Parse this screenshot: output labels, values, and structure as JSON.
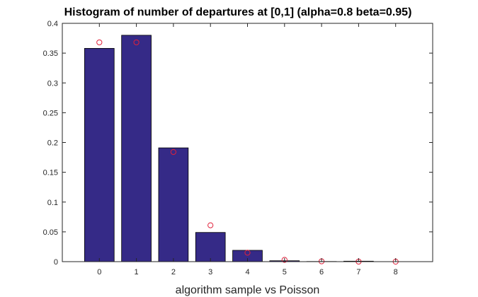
{
  "chart_data": {
    "type": "bar",
    "title": "Histogram of number of departures at [0,1] (alpha=0.8 beta=0.95)",
    "xlabel": "algorithm sample vs Poisson",
    "ylabel": "",
    "categories": [
      "0",
      "1",
      "2",
      "3",
      "4",
      "5",
      "6",
      "7",
      "8"
    ],
    "xlim": [
      -1,
      9
    ],
    "ylim": [
      0,
      0.4
    ],
    "yticks": [
      0,
      0.05,
      0.1,
      0.15,
      0.2,
      0.25,
      0.3,
      0.35,
      0.4
    ],
    "ytick_labels": [
      "0",
      "0.05",
      "0.1",
      "0.15",
      "0.2",
      "0.25",
      "0.3",
      "0.35",
      "0.4"
    ],
    "grid": false,
    "series": [
      {
        "kind": "bar",
        "values": [
          0.358,
          0.38,
          0.191,
          0.049,
          0.019,
          0.0015,
          0.0003,
          0.0008,
          0.0
        ],
        "color": "#352A87"
      },
      {
        "kind": "scatter",
        "marker": "open-circle",
        "values": [
          0.368,
          0.368,
          0.184,
          0.061,
          0.015,
          0.003,
          0.0005,
          0.0001,
          0.0
        ],
        "color": "#E0203A"
      }
    ]
  }
}
